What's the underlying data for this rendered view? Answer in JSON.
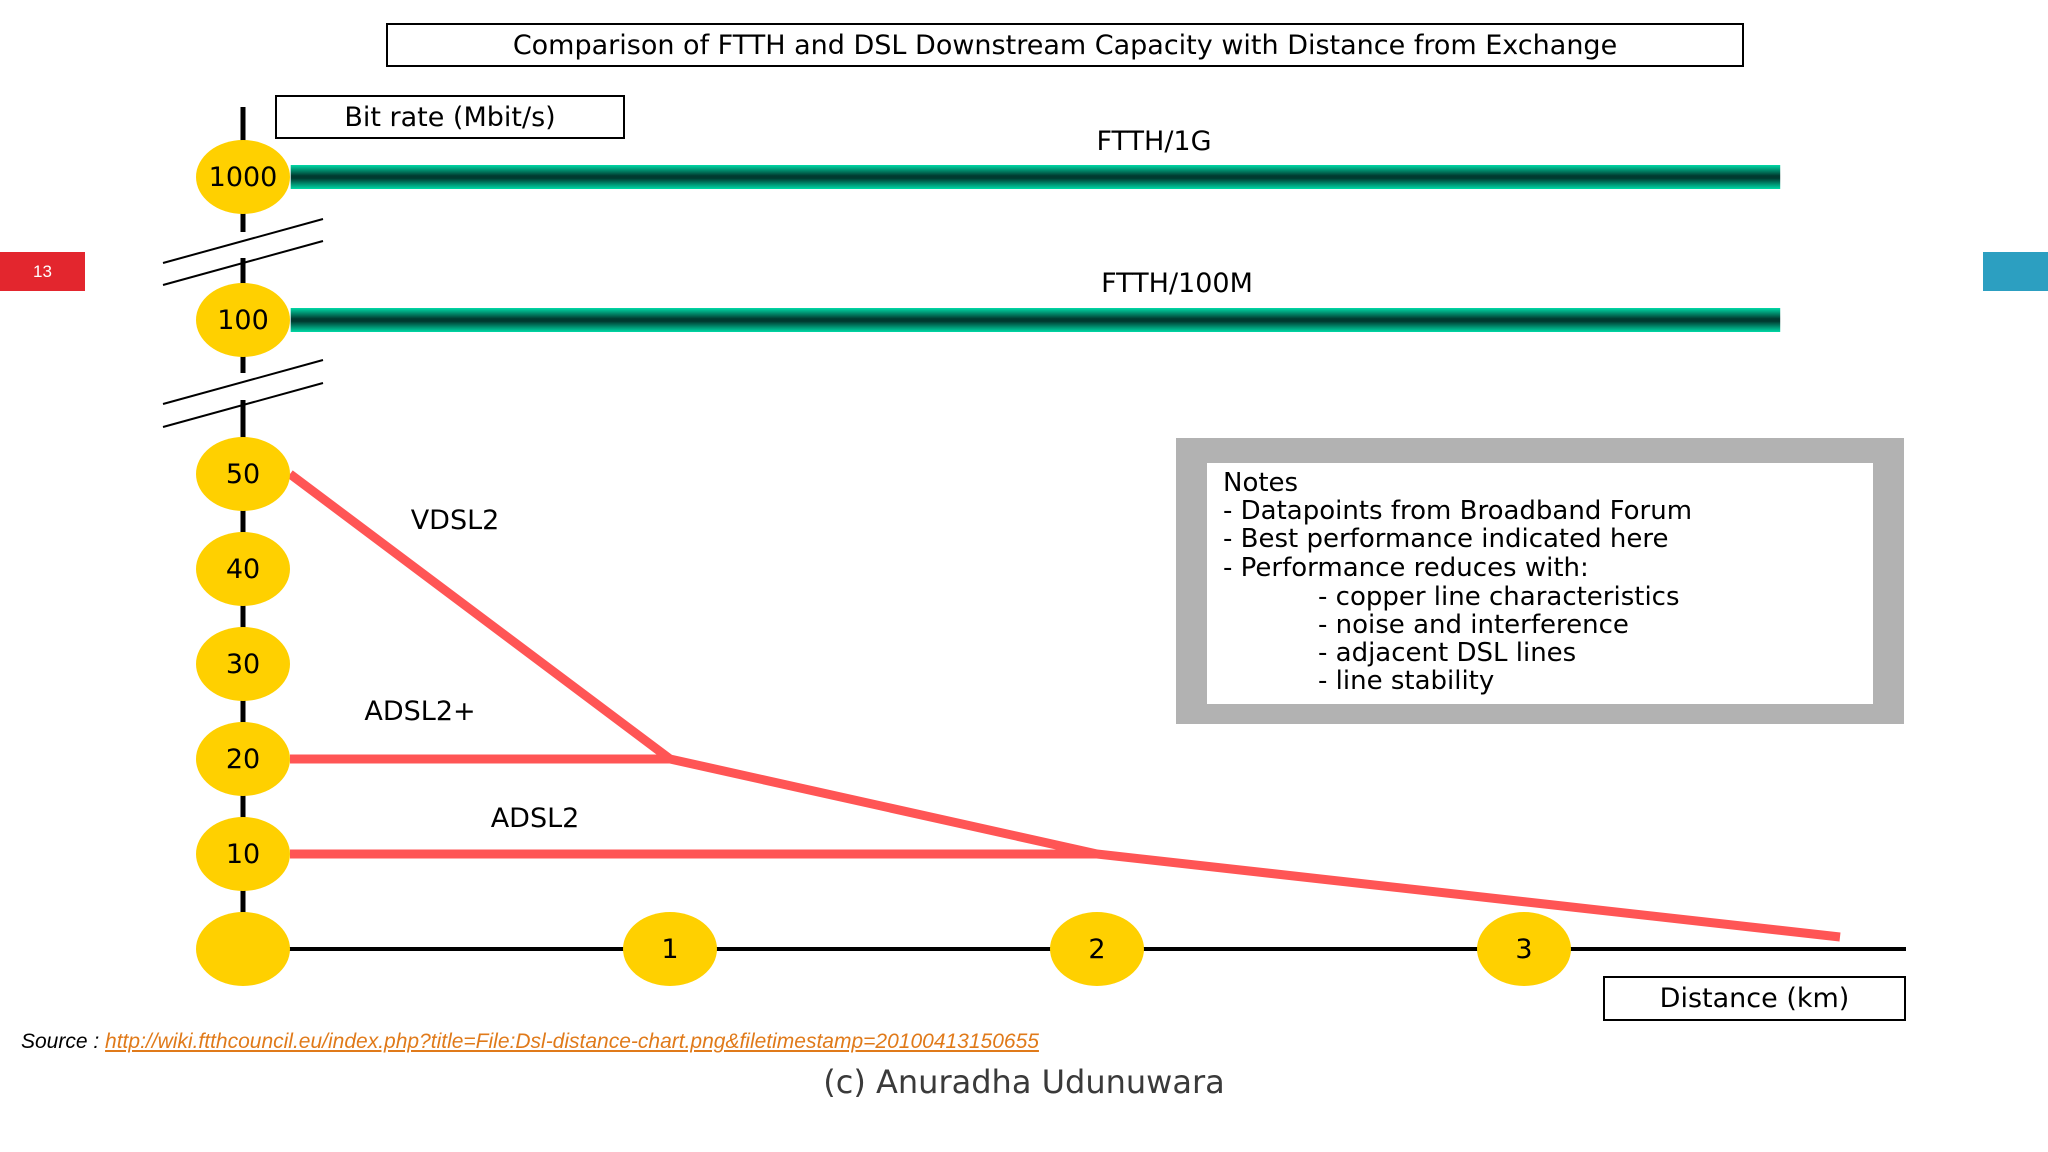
{
  "slide": {
    "number": "13",
    "accent_red": "#e3262e",
    "accent_blue": "#2c9fc1"
  },
  "chart_data": {
    "type": "line",
    "title": "Comparison of FTTH and DSL Downstream Capacity with Distance from Exchange",
    "ylabel": "Bit rate (Mbit/s)",
    "xlabel": "Distance (km)",
    "y_ticks": [
      "1000",
      "100",
      "50",
      "40",
      "30",
      "20",
      "10",
      ""
    ],
    "x_ticks": [
      "1",
      "2",
      "3"
    ],
    "xlim": [
      0,
      3.6
    ],
    "series": [
      {
        "name": "FTTH/1G",
        "color": "#00a890",
        "x": [
          0.1,
          3.6
        ],
        "y": [
          1000,
          1000
        ]
      },
      {
        "name": "FTTH/100M",
        "color": "#00a890",
        "x": [
          0.1,
          3.6
        ],
        "y": [
          100,
          100
        ]
      },
      {
        "name": "VDSL2",
        "color": "#ff5555",
        "x": [
          0.1,
          1,
          2,
          3.75
        ],
        "y": [
          50,
          20,
          10,
          1
        ]
      },
      {
        "name": "ADSL2+",
        "color": "#ff5555",
        "x": [
          0.1,
          1
        ],
        "y": [
          20,
          20
        ]
      },
      {
        "name": "ADSL2",
        "color": "#ff5555",
        "x": [
          0.1,
          2
        ],
        "y": [
          10,
          10
        ]
      }
    ]
  },
  "notes": {
    "lines": [
      "Notes",
      "- Datapoints from Broadband Forum",
      "- Best performance indicated here",
      "- Performance reduces with:",
      "- copper line characteristics",
      "- noise and interference",
      "- adjacent DSL lines",
      "- line stability"
    ]
  },
  "source": {
    "prefix": "Source : ",
    "link_text": "http://wiki.ftthcouncil.eu/index.php?title=File:Dsl-distance-chart.png&filetimestamp=20100413150655"
  },
  "footer": {
    "copyright": "(c) Anuradha Udunuwara"
  }
}
